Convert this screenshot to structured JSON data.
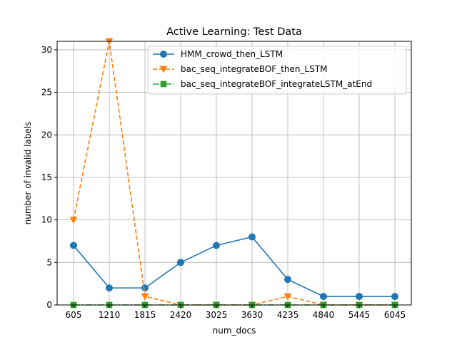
{
  "chart_data": {
    "type": "line",
    "title": "Active Learning: Test Data",
    "xlabel": "num_docs",
    "ylabel": "number of invalid labels",
    "x": [
      605,
      1210,
      1815,
      2420,
      3025,
      3630,
      4235,
      4840,
      5445,
      6045
    ],
    "xticks": [
      "605",
      "1210",
      "1815",
      "2420",
      "3025",
      "3630",
      "4235",
      "4840",
      "5445",
      "6045"
    ],
    "yticks": [
      0,
      5,
      10,
      15,
      20,
      25,
      30
    ],
    "ylim": [
      0,
      31
    ],
    "grid": true,
    "legend_position": "top-right",
    "series": [
      {
        "name": "HMM_crowd_then_LSTM",
        "color": "#1f77b4",
        "marker": "circle",
        "linestyle": "solid",
        "values": [
          7,
          2,
          2,
          5,
          7,
          8,
          3,
          1,
          1,
          1
        ]
      },
      {
        "name": "bac_seq_integrateBOF_then_LSTM",
        "color": "#ff7f0e",
        "marker": "triangle-down",
        "linestyle": "dashed",
        "values": [
          10,
          31,
          1,
          0,
          0,
          0,
          1,
          0,
          0,
          0
        ]
      },
      {
        "name": "bac_seq_integrateBOF_integrateLSTM_atEnd",
        "color": "#2ca02c",
        "marker": "square",
        "linestyle": "dashdot",
        "values": [
          0,
          0,
          0,
          0,
          0,
          0,
          0,
          0,
          0,
          0
        ]
      }
    ]
  }
}
